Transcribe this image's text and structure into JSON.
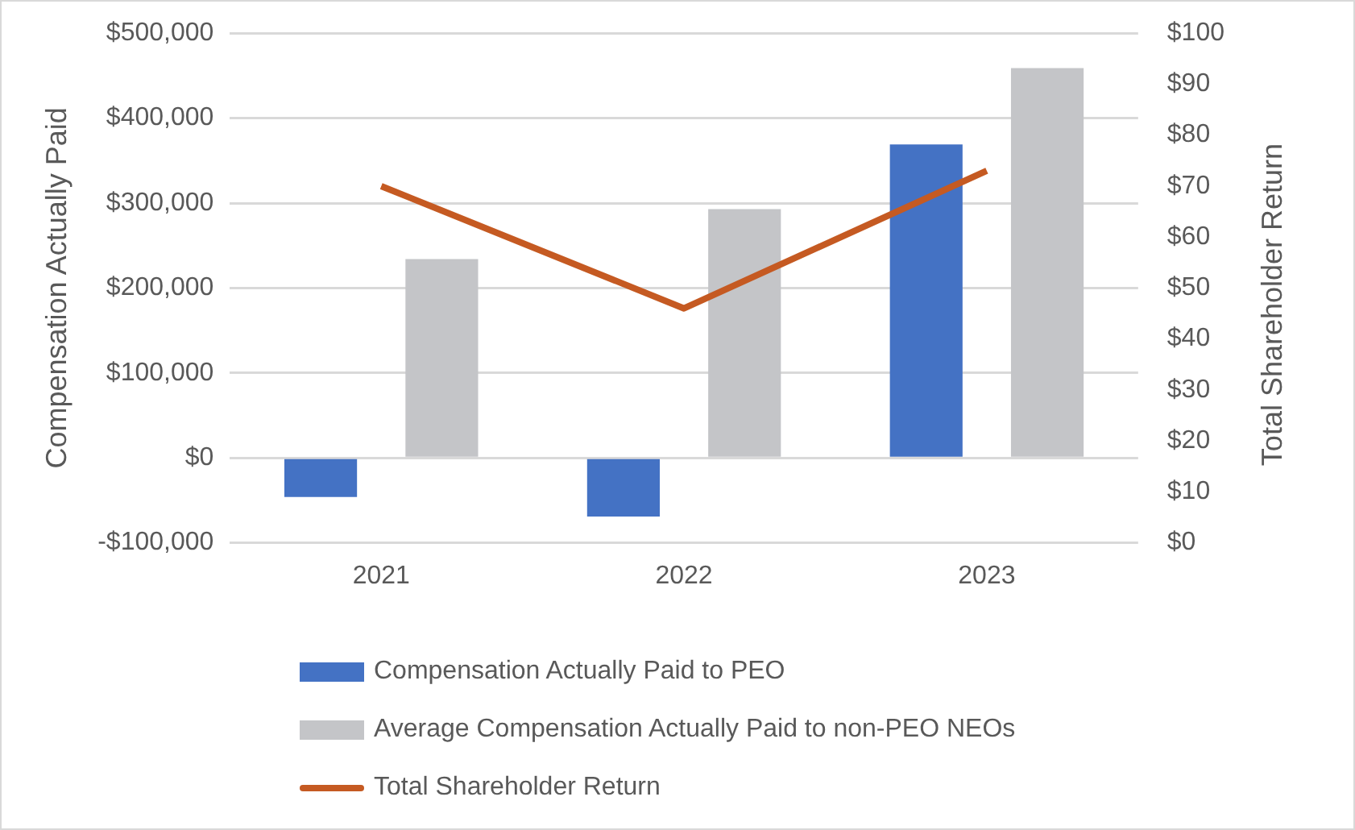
{
  "chart_data": {
    "type": "bar",
    "ylabel": "Compensation Actually Paid",
    "y2label": "Total Shareholder Return",
    "categories": [
      "2021",
      "2022",
      "2023"
    ],
    "series": [
      {
        "name": "Compensation Actually Paid to PEO",
        "color": "#4472c4",
        "values": [
          -46000,
          -69000,
          369000
        ]
      },
      {
        "name": "Average Compensation Actually Paid to non-PEO NEOs",
        "color": "#c4c5c8",
        "values": [
          234000,
          293000,
          459000
        ]
      },
      {
        "name": "Total Shareholder Return",
        "type": "line",
        "axis": "y2",
        "color": "#c55a22",
        "values": [
          70,
          46,
          73
        ]
      }
    ],
    "ylim": [
      -100000,
      500000
    ],
    "yticks": [
      {
        "value": -100000,
        "label": "-$100,000"
      },
      {
        "value": 0,
        "label": "$0"
      },
      {
        "value": 100000,
        "label": "$100,000"
      },
      {
        "value": 200000,
        "label": "$200,000"
      },
      {
        "value": 300000,
        "label": "$300,000"
      },
      {
        "value": 400000,
        "label": "$400,000"
      },
      {
        "value": 500000,
        "label": "$500,000"
      }
    ],
    "y2lim": [
      0,
      100
    ],
    "y2ticks": [
      {
        "value": 0,
        "label": "$0"
      },
      {
        "value": 10,
        "label": "$10"
      },
      {
        "value": 20,
        "label": "$20"
      },
      {
        "value": 30,
        "label": "$30"
      },
      {
        "value": 40,
        "label": "$40"
      },
      {
        "value": 50,
        "label": "$50"
      },
      {
        "value": 60,
        "label": "$60"
      },
      {
        "value": 70,
        "label": "$70"
      },
      {
        "value": 80,
        "label": "$80"
      },
      {
        "value": 90,
        "label": "$90"
      },
      {
        "value": 100,
        "label": "$100"
      }
    ],
    "grid": "y",
    "legend": "bottom",
    "marker": "none"
  }
}
